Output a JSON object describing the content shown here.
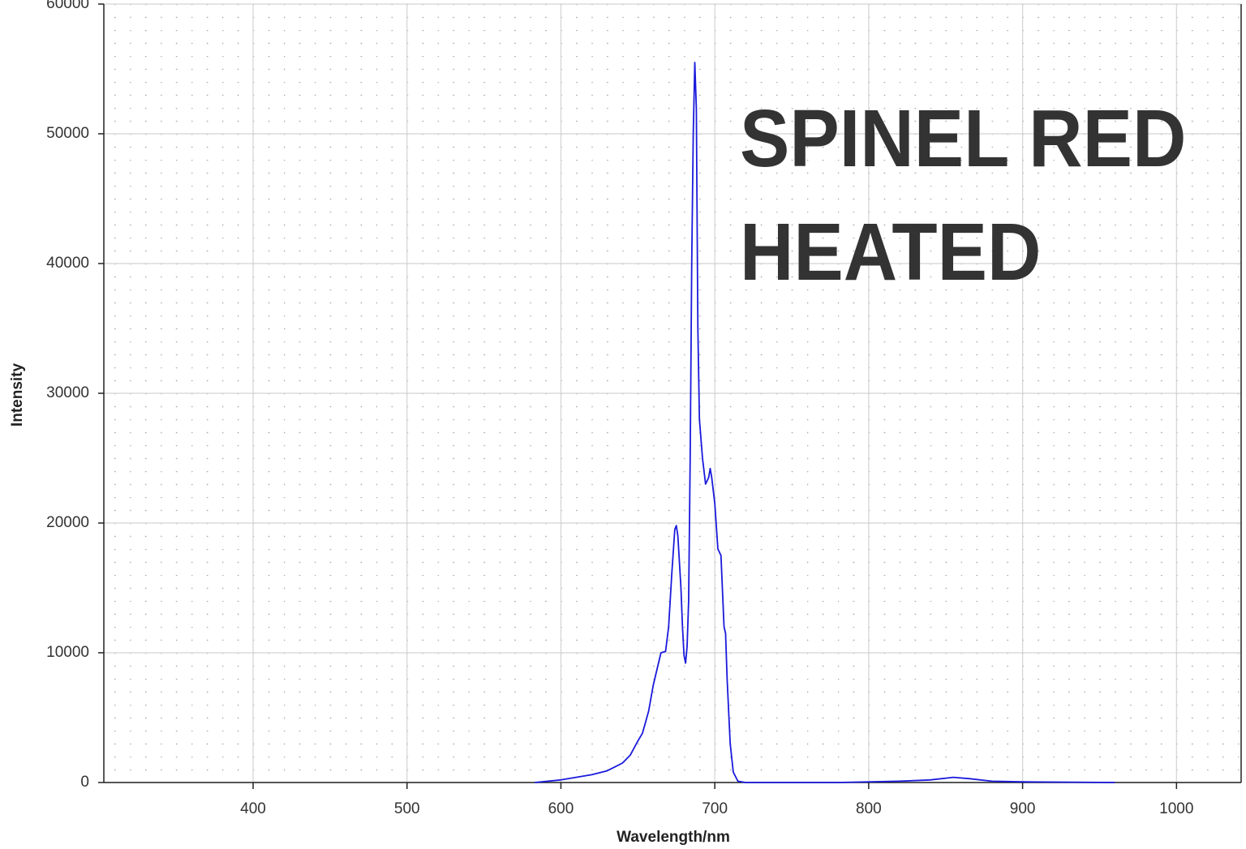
{
  "chart_data": {
    "type": "line",
    "annotation": [
      "SPINEL RED",
      "HEATED"
    ],
    "annotation_color": "#ff0000",
    "x_label": "Wavelength/nm",
    "y_label": "Intensity",
    "series": [
      {
        "color": "#1a1adc",
        "x": [
          583,
          600,
          620,
          630,
          640,
          645,
          650,
          653,
          657,
          660,
          663,
          665,
          668,
          670,
          672,
          674,
          675,
          676,
          678,
          679,
          680,
          681,
          682,
          683,
          684,
          685,
          686,
          687,
          688,
          689,
          690,
          692,
          694,
          696,
          697,
          698,
          700,
          702,
          704,
          706,
          707,
          708,
          710,
          712,
          715,
          720,
          780,
          820,
          840,
          855,
          865,
          880,
          900,
          960
        ],
        "values": [
          0,
          200,
          600,
          900,
          1500,
          2100,
          3200,
          3800,
          5500,
          7500,
          9000,
          10000,
          10100,
          12000,
          16000,
          19500,
          19800,
          19000,
          15000,
          12000,
          9800,
          9200,
          10500,
          14000,
          25000,
          40000,
          50000,
          55500,
          52000,
          35000,
          28000,
          25000,
          23000,
          23500,
          24200,
          23500,
          21500,
          18000,
          17500,
          12000,
          11500,
          8000,
          3000,
          800,
          100,
          0,
          0,
          100,
          200,
          400,
          300,
          100,
          50,
          0
        ]
      }
    ],
    "xlim": [
      303,
      1042
    ],
    "ylim": [
      0,
      60000
    ],
    "xticks": [
      400,
      500,
      600,
      700,
      800,
      900,
      1000
    ],
    "yticks": [
      0,
      10000,
      20000,
      30000,
      40000,
      50000,
      60000
    ],
    "grid": true
  }
}
